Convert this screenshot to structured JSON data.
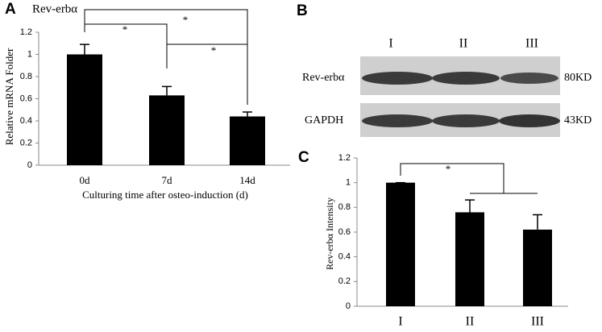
{
  "panel_labels": [
    "A",
    "B",
    "C"
  ],
  "chart_data": [
    {
      "type": "bar",
      "title": "Rev-erbα",
      "y_label": "Relative mRNA Folder",
      "x_label": "Culturing time  after osteo-induction  (d)",
      "categories": [
        "0d",
        "7d",
        "14d"
      ],
      "values": [
        1.0,
        0.63,
        0.44
      ],
      "errors": [
        0.09,
        0.08,
        0.04
      ],
      "color": "#000000",
      "ylim": [
        0,
        1.2
      ],
      "yticks": [
        0,
        0.2,
        0.4,
        0.6,
        0.8,
        1,
        1.2
      ],
      "annotations": [
        "*",
        "*",
        "*"
      ]
    },
    {
      "type": "bar",
      "y_label": "Rev-erbα Intensity",
      "categories": [
        "I",
        "II",
        "III"
      ],
      "values": [
        1.0,
        0.76,
        0.62
      ],
      "errors": [
        0,
        0.1,
        0.12
      ],
      "color": "#000000",
      "ylim": [
        0,
        1.2
      ],
      "yticks": [
        0,
        0.2,
        0.4,
        0.6,
        0.8,
        1,
        1.2
      ],
      "annotations": [
        "*"
      ]
    }
  ],
  "blot": {
    "lanes": [
      "I",
      "II",
      "III"
    ],
    "rows": [
      {
        "name": "Rev-erbα",
        "size": "80KD"
      },
      {
        "name": "GAPDH",
        "size": "43KD"
      }
    ]
  }
}
